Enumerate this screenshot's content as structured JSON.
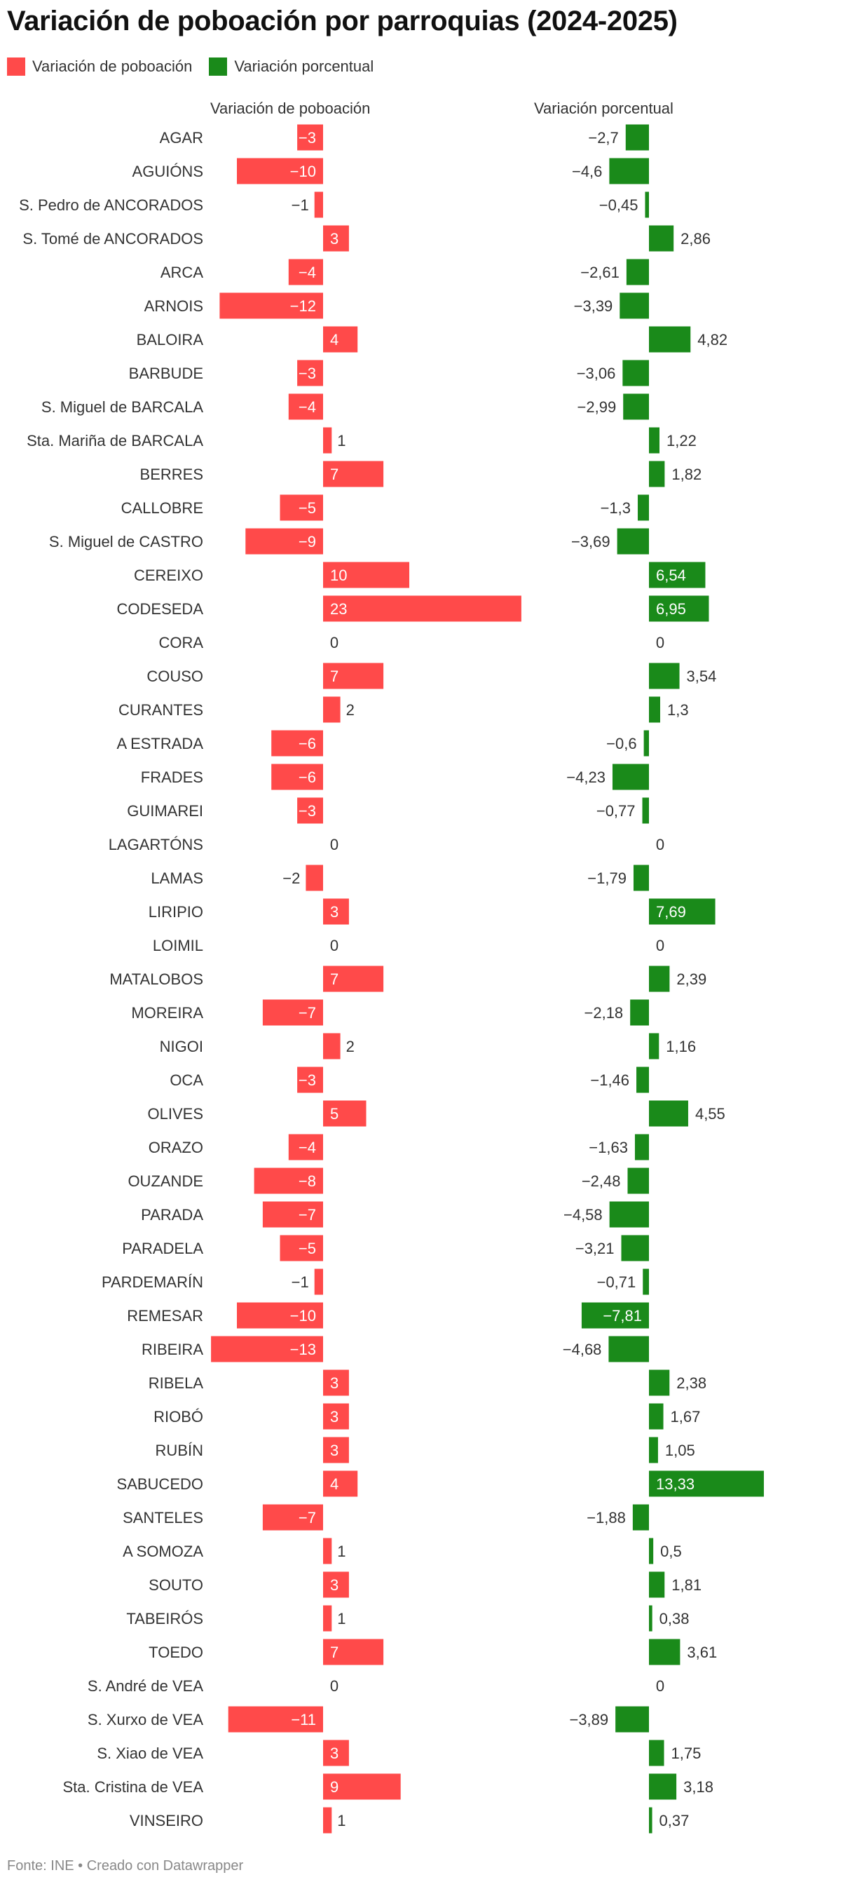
{
  "title": "Variación de poboación por parroquias (2024-2025)",
  "footer": "Fonte: INE • Creado con Datawrapper",
  "legend": [
    {
      "label": "Variación de poboación",
      "color": "#ff4a4a"
    },
    {
      "label": "Variación porcentual",
      "color": "#1a8a1a"
    }
  ],
  "colors": {
    "abs": "#ff4a4a",
    "pct": "#1a8a1a"
  },
  "chart_data": {
    "type": "bar",
    "orientation": "horizontal",
    "panels": [
      {
        "title": "Variación de poboación",
        "series_index": 0
      },
      {
        "title": "Variación porcentual",
        "series_index": 1
      }
    ],
    "categories": [
      "AGAR",
      "AGUIÓNS",
      "S. Pedro de ANCORADOS",
      "S. Tomé de ANCORADOS",
      "ARCA",
      "ARNOIS",
      "BALOIRA",
      "BARBUDE",
      "S. Miguel de BARCALA",
      "Sta. Mariña de BARCALA",
      "BERRES",
      "CALLOBRE",
      "S. Miguel de CASTRO",
      "CEREIXO",
      "CODESEDA",
      "CORA",
      "COUSO",
      "CURANTES",
      "A ESTRADA",
      "FRADES",
      "GUIMAREI",
      "LAGARTÓNS",
      "LAMAS",
      "LIRIPIO",
      "LOIMIL",
      "MATALOBOS",
      "MOREIRA",
      "NIGOI",
      "OCA",
      "OLIVES",
      "ORAZO",
      "OUZANDE",
      "PARADA",
      "PARADELA",
      "PARDEMARÍN",
      "REMESAR",
      "RIBEIRA",
      "RIBELA",
      "RIOBÓ",
      "RUBÍN",
      "SABUCEDO",
      "SANTELES",
      "A SOMOZA",
      "SOUTO",
      "TABEIRÓS",
      "TOEDO",
      "S. André de VEA",
      "S. Xurxo de VEA",
      "S. Xiao de VEA",
      "Sta. Cristina de VEA",
      "VINSEIRO"
    ],
    "series": [
      {
        "name": "Variación de poboación",
        "values": [
          -3,
          -10,
          -1,
          3,
          -4,
          -12,
          4,
          -3,
          -4,
          1,
          7,
          -5,
          -9,
          10,
          23,
          0,
          7,
          2,
          -6,
          -6,
          -3,
          0,
          -2,
          3,
          0,
          7,
          -7,
          2,
          -3,
          5,
          -4,
          -8,
          -7,
          -5,
          -1,
          -10,
          -13,
          3,
          3,
          3,
          4,
          -7,
          1,
          3,
          1,
          7,
          0,
          -11,
          3,
          9,
          1
        ],
        "labels": [
          "−3",
          "−10",
          "−1",
          "3",
          "−4",
          "−12",
          "4",
          "−3",
          "−4",
          "1",
          "7",
          "−5",
          "−9",
          "10",
          "23",
          "0",
          "7",
          "2",
          "−6",
          "−6",
          "−3",
          "0",
          "−2",
          "3",
          "0",
          "7",
          "−7",
          "2",
          "−3",
          "5",
          "−4",
          "−8",
          "−7",
          "−5",
          "−1",
          "−10",
          "−13",
          "3",
          "3",
          "3",
          "4",
          "−7",
          "1",
          "3",
          "1",
          "7",
          "0",
          "−11",
          "3",
          "9",
          "1"
        ]
      },
      {
        "name": "Variación porcentual",
        "values": [
          -2.7,
          -4.6,
          -0.45,
          2.86,
          -2.61,
          -3.39,
          4.82,
          -3.06,
          -2.99,
          1.22,
          1.82,
          -1.3,
          -3.69,
          6.54,
          6.95,
          0,
          3.54,
          1.3,
          -0.6,
          -4.23,
          -0.77,
          0,
          -1.79,
          7.69,
          0,
          2.39,
          -2.18,
          1.16,
          -1.46,
          4.55,
          -1.63,
          -2.48,
          -4.58,
          -3.21,
          -0.71,
          -7.81,
          -4.68,
          2.38,
          1.67,
          1.05,
          13.33,
          -1.88,
          0.5,
          1.81,
          0.38,
          3.61,
          0,
          -3.89,
          1.75,
          3.18,
          0.37
        ],
        "labels": [
          "−2,7",
          "−4,6",
          "−0,45",
          "2,86",
          "−2,61",
          "−3,39",
          "4,82",
          "−3,06",
          "−2,99",
          "1,22",
          "1,82",
          "−1,3",
          "−3,69",
          "6,54",
          "6,95",
          "0",
          "3,54",
          "1,3",
          "−0,6",
          "−4,23",
          "−0,77",
          "0",
          "−1,79",
          "7,69",
          "0",
          "2,39",
          "−2,18",
          "1,16",
          "−1,46",
          "4,55",
          "−1,63",
          "−2,48",
          "−4,58",
          "−3,21",
          "−0,71",
          "−7,81",
          "−4,68",
          "2,38",
          "1,67",
          "1,05",
          "13,33",
          "−1,88",
          "0,5",
          "1,81",
          "0,38",
          "3,61",
          "0",
          "−3,89",
          "1,75",
          "3,18",
          "0,37"
        ]
      }
    ],
    "grid": false,
    "legend_position": "top-left"
  }
}
